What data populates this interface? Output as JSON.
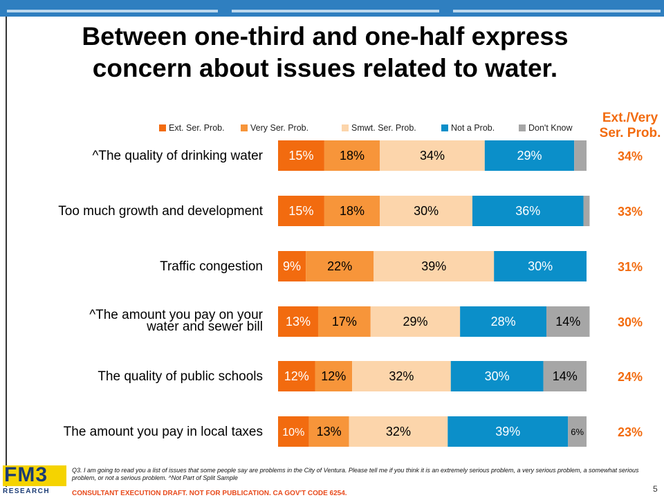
{
  "title": "Between one-third and one-half express concern about issues related to water.",
  "summary_header": "Ext./Very Ser. Prob.",
  "colors": {
    "ext": "#f26b0f",
    "very": "#f7953a",
    "smwt": "#fcd5ab",
    "not": "#0b8fc9",
    "dk": "#a6a6a6",
    "summary": "#f26b0f"
  },
  "chart_data": {
    "type": "bar",
    "orientation": "horizontal",
    "stacked": true,
    "xlim": [
      0,
      100
    ],
    "legend_position": "top",
    "categories": [
      "^The quality of drinking water",
      "Too much growth and development",
      "Traffic congestion",
      "^The amount you pay on your water and sewer bill",
      "The quality of public schools",
      "The amount you pay in local taxes"
    ],
    "series": [
      {
        "name": "Ext. Ser. Prob.",
        "key": "ext",
        "values": [
          15,
          15,
          9,
          13,
          12,
          10
        ],
        "labels": [
          "15%",
          "15%",
          "9%",
          "13%",
          "12%",
          "10%"
        ]
      },
      {
        "name": "Very Ser. Prob.",
        "key": "very",
        "values": [
          18,
          18,
          22,
          17,
          12,
          13
        ],
        "labels": [
          "18%",
          "18%",
          "22%",
          "17%",
          "12%",
          "13%"
        ]
      },
      {
        "name": "Smwt. Ser. Prob.",
        "key": "smwt",
        "values": [
          34,
          30,
          39,
          29,
          32,
          32
        ],
        "labels": [
          "34%",
          "30%",
          "39%",
          "29%",
          "32%",
          "32%"
        ]
      },
      {
        "name": "Not a Prob.",
        "key": "not",
        "values": [
          29,
          36,
          30,
          28,
          30,
          39
        ],
        "labels": [
          "29%",
          "36%",
          "30%",
          "28%",
          "30%",
          "39%"
        ]
      },
      {
        "name": "Don't Know",
        "key": "dk",
        "values": [
          4,
          2,
          0,
          14,
          14,
          6
        ],
        "labels": [
          "",
          "",
          "",
          "14%",
          "14%",
          "6%"
        ]
      }
    ],
    "summary": [
      "34%",
      "33%",
      "31%",
      "30%",
      "24%",
      "23%"
    ]
  },
  "footer": {
    "logo_top": "FM3",
    "logo_bottom": "RESEARCH",
    "footnote": "Q3. I am going to read you a list of issues that some people say are problems in the City of Ventura.  Please tell me if you think it is an extremely serious problem, a very serious problem, a somewhat serious problem, or not a serious problem. ^Not Part of Split Sample",
    "draft": "CONSULTANT EXECUTION DRAFT.  NOT FOR PUBLICATION.  CA GOV'T CODE 6254.",
    "page_number": "5"
  }
}
